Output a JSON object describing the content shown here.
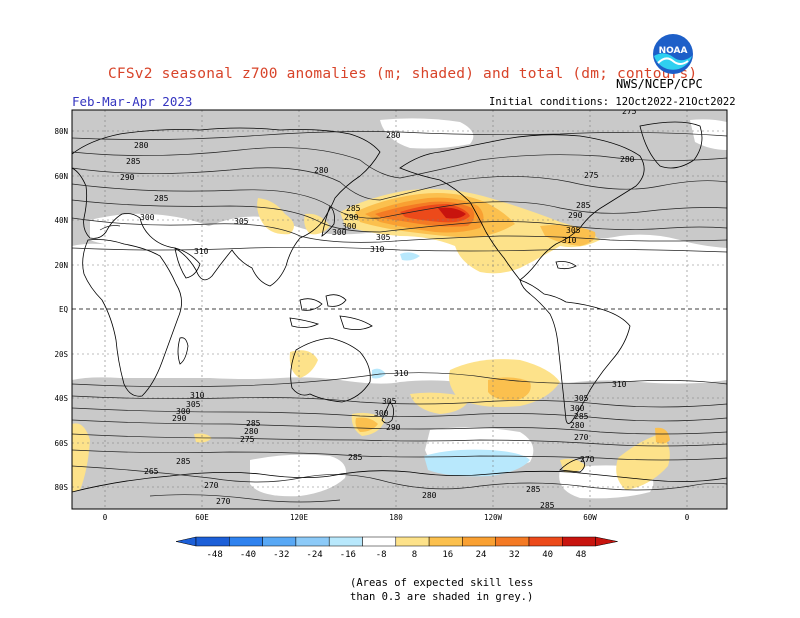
{
  "header": {
    "title": "CFSv2 seasonal z700 anomalies (m; shaded) and total (dm; contours)",
    "season": "Feb-Mar-Apr 2023",
    "agency": "NWS/NCEP/CPC",
    "initial_conditions": "Initial conditions: 12Oct2022-21Oct2022",
    "logo_text": "NOAA"
  },
  "axes": {
    "lat_labels": [
      "80N",
      "60N",
      "40N",
      "20N",
      "EQ",
      "20S",
      "40S",
      "60S",
      "80S"
    ],
    "lon_labels": [
      "0",
      "60E",
      "120E",
      "180",
      "120W",
      "60W",
      "0"
    ]
  },
  "contour_labels": [
    "280",
    "285",
    "290",
    "300",
    "305",
    "310",
    "270",
    "275",
    "265"
  ],
  "colorbar": {
    "colors": [
      "#1c5fd8",
      "#2f82ef",
      "#58a8f5",
      "#8ccaf8",
      "#b8e8fc",
      "#ffffff",
      "#fde28a",
      "#fbc04e",
      "#f9a032",
      "#f47a24",
      "#ec4a1a",
      "#c8140e"
    ],
    "labels": [
      "-48",
      "-40",
      "-32",
      "-24",
      "-16",
      "-8",
      "8",
      "16",
      "24",
      "32",
      "40",
      "48"
    ]
  },
  "colors": {
    "grey_mask": "#c9c9c9",
    "title": "#d8442a",
    "season": "#3535c0"
  },
  "footnote": {
    "line1": "(Areas of expected skill less",
    "line2": "than 0.3 are shaded in grey.)"
  }
}
